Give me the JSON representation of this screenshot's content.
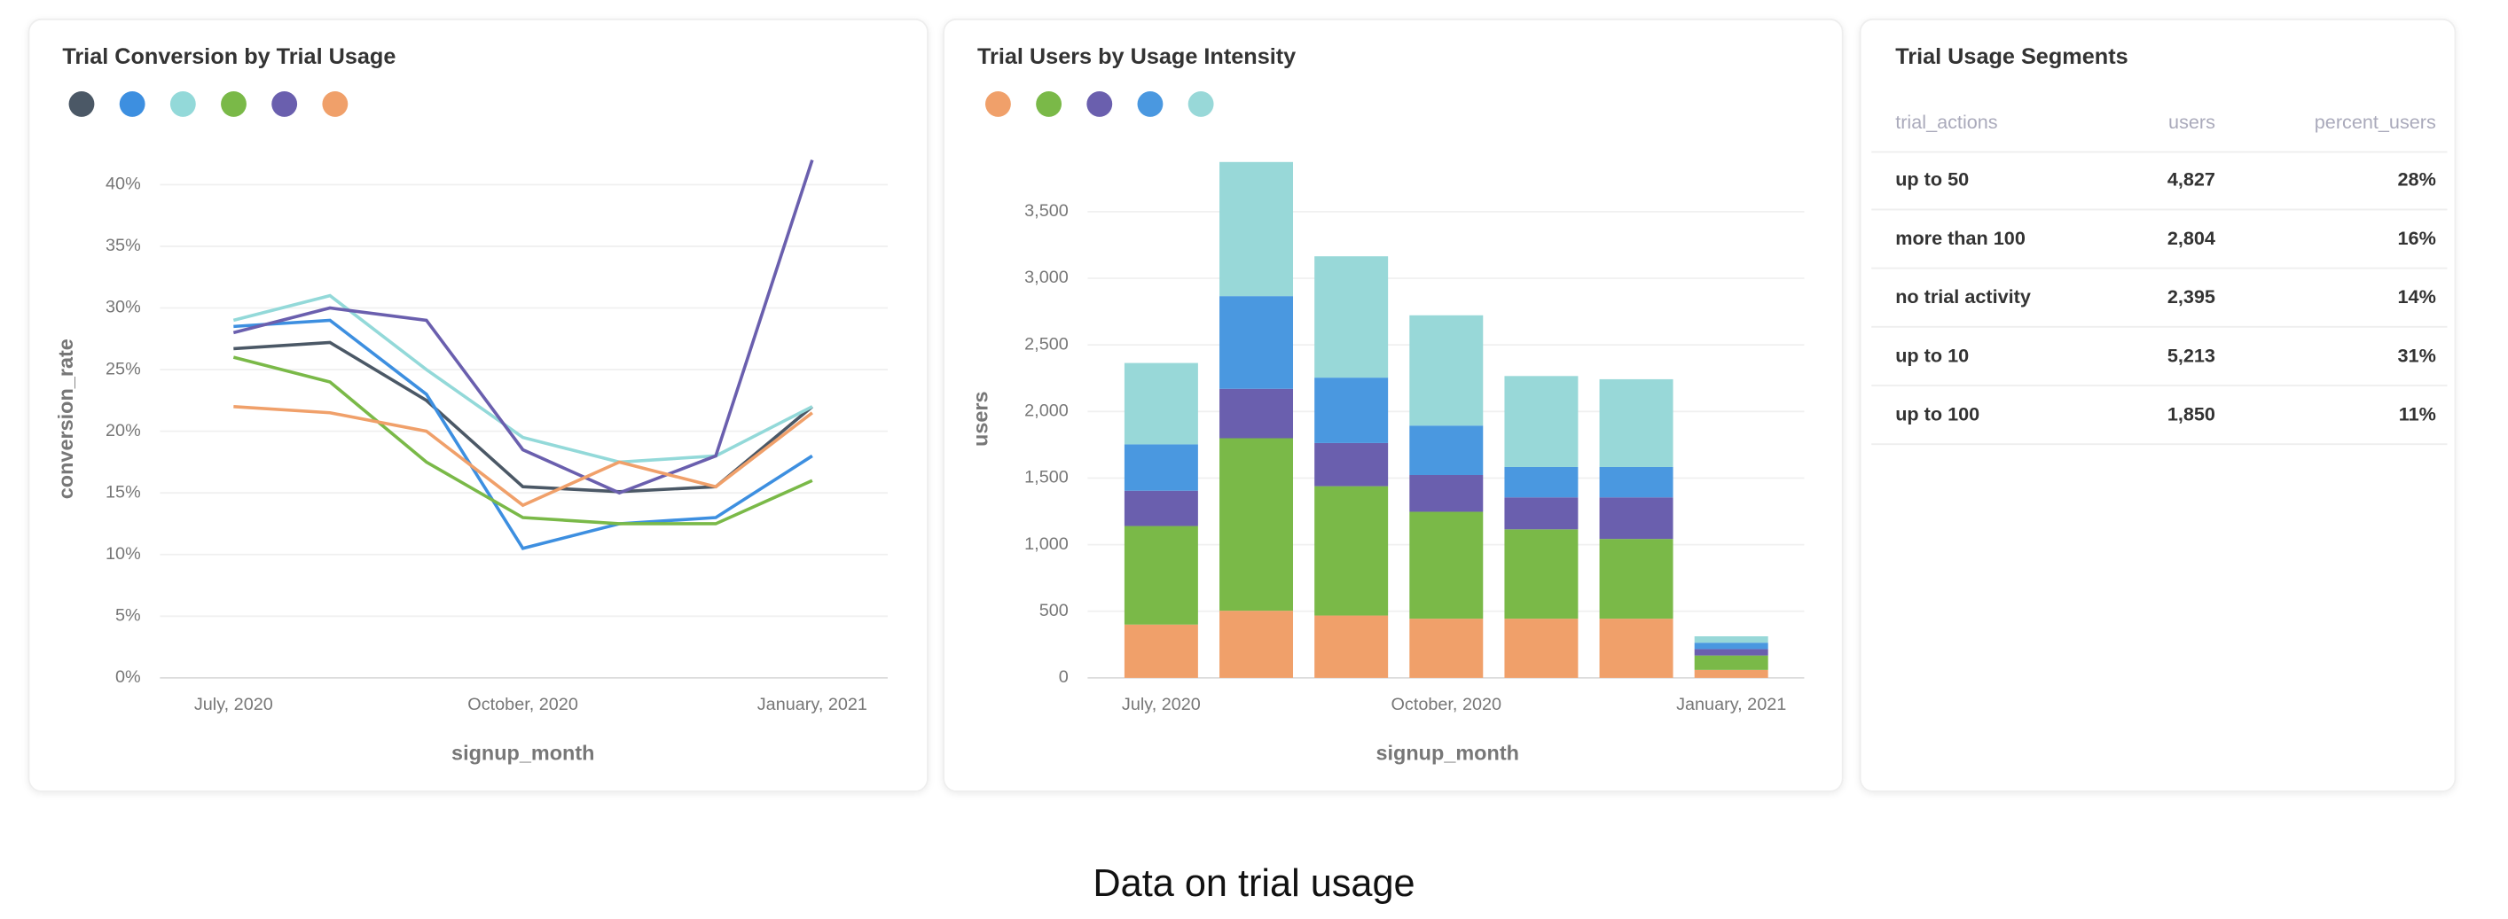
{
  "chart_data": [
    {
      "type": "line",
      "title": "Trial Conversion by Trial Usage",
      "x_label": "signup_month",
      "y_label": "conversion_rate",
      "categories": [
        "July, 2020",
        null,
        null,
        "October, 2020",
        null,
        null,
        "January, 2021"
      ],
      "series": [
        {
          "color": "#4b5866",
          "values": [
            26.7,
            27.2,
            22.5,
            15.5,
            15.1,
            15.5,
            22
          ]
        },
        {
          "color": "#3d8fe0",
          "values": [
            28.5,
            29,
            23,
            10.5,
            12.5,
            13,
            18
          ]
        },
        {
          "color": "#93d9d9",
          "values": [
            29,
            31,
            25,
            19.5,
            17.5,
            18,
            22
          ]
        },
        {
          "color": "#7ab948",
          "values": [
            26,
            24,
            17.5,
            13,
            12.5,
            12.5,
            16
          ]
        },
        {
          "color": "#6a5fae",
          "values": [
            28,
            30,
            29,
            18.5,
            15,
            18,
            42
          ]
        },
        {
          "color": "#f0a06a",
          "values": [
            22,
            21.5,
            20,
            14,
            17.5,
            15.5,
            21.5
          ]
        }
      ],
      "ylim": [
        0,
        42
      ],
      "yticks": [
        {
          "value": 0,
          "label": "0%"
        },
        {
          "value": 5,
          "label": "5%"
        },
        {
          "value": 10,
          "label": "10%"
        },
        {
          "value": 15,
          "label": "15%"
        },
        {
          "value": 20,
          "label": "20%"
        },
        {
          "value": 25,
          "label": "25%"
        },
        {
          "value": 30,
          "label": "30%"
        },
        {
          "value": 35,
          "label": "35%"
        },
        {
          "value": 40,
          "label": "40%"
        }
      ],
      "grid": true
    },
    {
      "type": "stacked_bar",
      "title": "Trial Users by Usage Intensity",
      "x_label": "signup_month",
      "y_label": "users",
      "categories": [
        "July, 2020",
        null,
        null,
        "October, 2020",
        null,
        null,
        "January, 2021"
      ],
      "series": [
        {
          "color": "#f0a06a",
          "values": [
            400,
            504,
            468,
            444,
            444,
            444,
            60
          ]
        },
        {
          "color": "#7ab948",
          "values": [
            740,
            1295,
            971,
            803,
            671,
            599,
            108
          ]
        },
        {
          "color": "#6a5fae",
          "values": [
            265,
            371,
            324,
            276,
            240,
            312,
            48
          ]
        },
        {
          "color": "#4a98e0",
          "values": [
            348,
            696,
            491,
            371,
            228,
            228,
            48
          ]
        },
        {
          "color": "#98d8d8",
          "values": [
            611,
            1007,
            911,
            828,
            683,
            659,
            48
          ]
        }
      ],
      "ylim": [
        0,
        3900
      ],
      "yticks": [
        0,
        500,
        {
          "value": 1000,
          "label": "1,000"
        },
        {
          "value": 1500,
          "label": "1,500"
        },
        {
          "value": 2000,
          "label": "2,000"
        },
        {
          "value": 2500,
          "label": "2,500"
        },
        {
          "value": 3000,
          "label": "3,000"
        },
        {
          "value": 3500,
          "label": "3,500"
        }
      ],
      "grid": true
    }
  ],
  "table": {
    "title": "Trial Usage Segments",
    "columns": [
      "trial_actions",
      "users",
      "percent_users"
    ],
    "rows": [
      [
        "up to 50",
        "4,827",
        "28%"
      ],
      [
        "more than 100",
        "2,804",
        "16%"
      ],
      [
        "no trial activity",
        "2,395",
        "14%"
      ],
      [
        "up to 10",
        "5,213",
        "31%"
      ],
      [
        "up to 100",
        "1,850",
        "11%"
      ]
    ]
  },
  "caption": "Data on trial usage"
}
